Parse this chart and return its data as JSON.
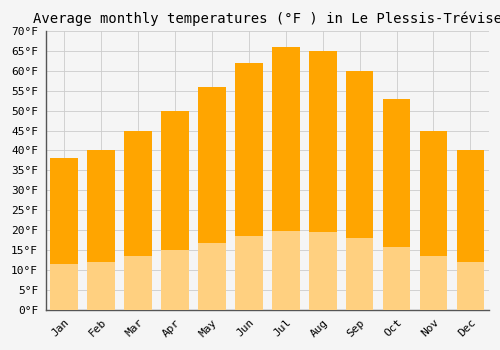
{
  "title": "Average monthly temperatures (°F ) in Le Plessis-Trévise",
  "months": [
    "Jan",
    "Feb",
    "Mar",
    "Apr",
    "May",
    "Jun",
    "Jul",
    "Aug",
    "Sep",
    "Oct",
    "Nov",
    "Dec"
  ],
  "temperatures": [
    38,
    40,
    45,
    50,
    56,
    62,
    66,
    65,
    60,
    53,
    45,
    40
  ],
  "bar_color_top": "#FFA500",
  "bar_color_bottom": "#FFD080",
  "bar_edge_color": "none",
  "ylim": [
    0,
    70
  ],
  "ytick_step": 5,
  "background_color": "#F5F5F5",
  "grid_color": "#CCCCCC",
  "title_fontsize": 10,
  "tick_fontsize": 8,
  "font_family": "monospace",
  "bar_width": 0.75
}
